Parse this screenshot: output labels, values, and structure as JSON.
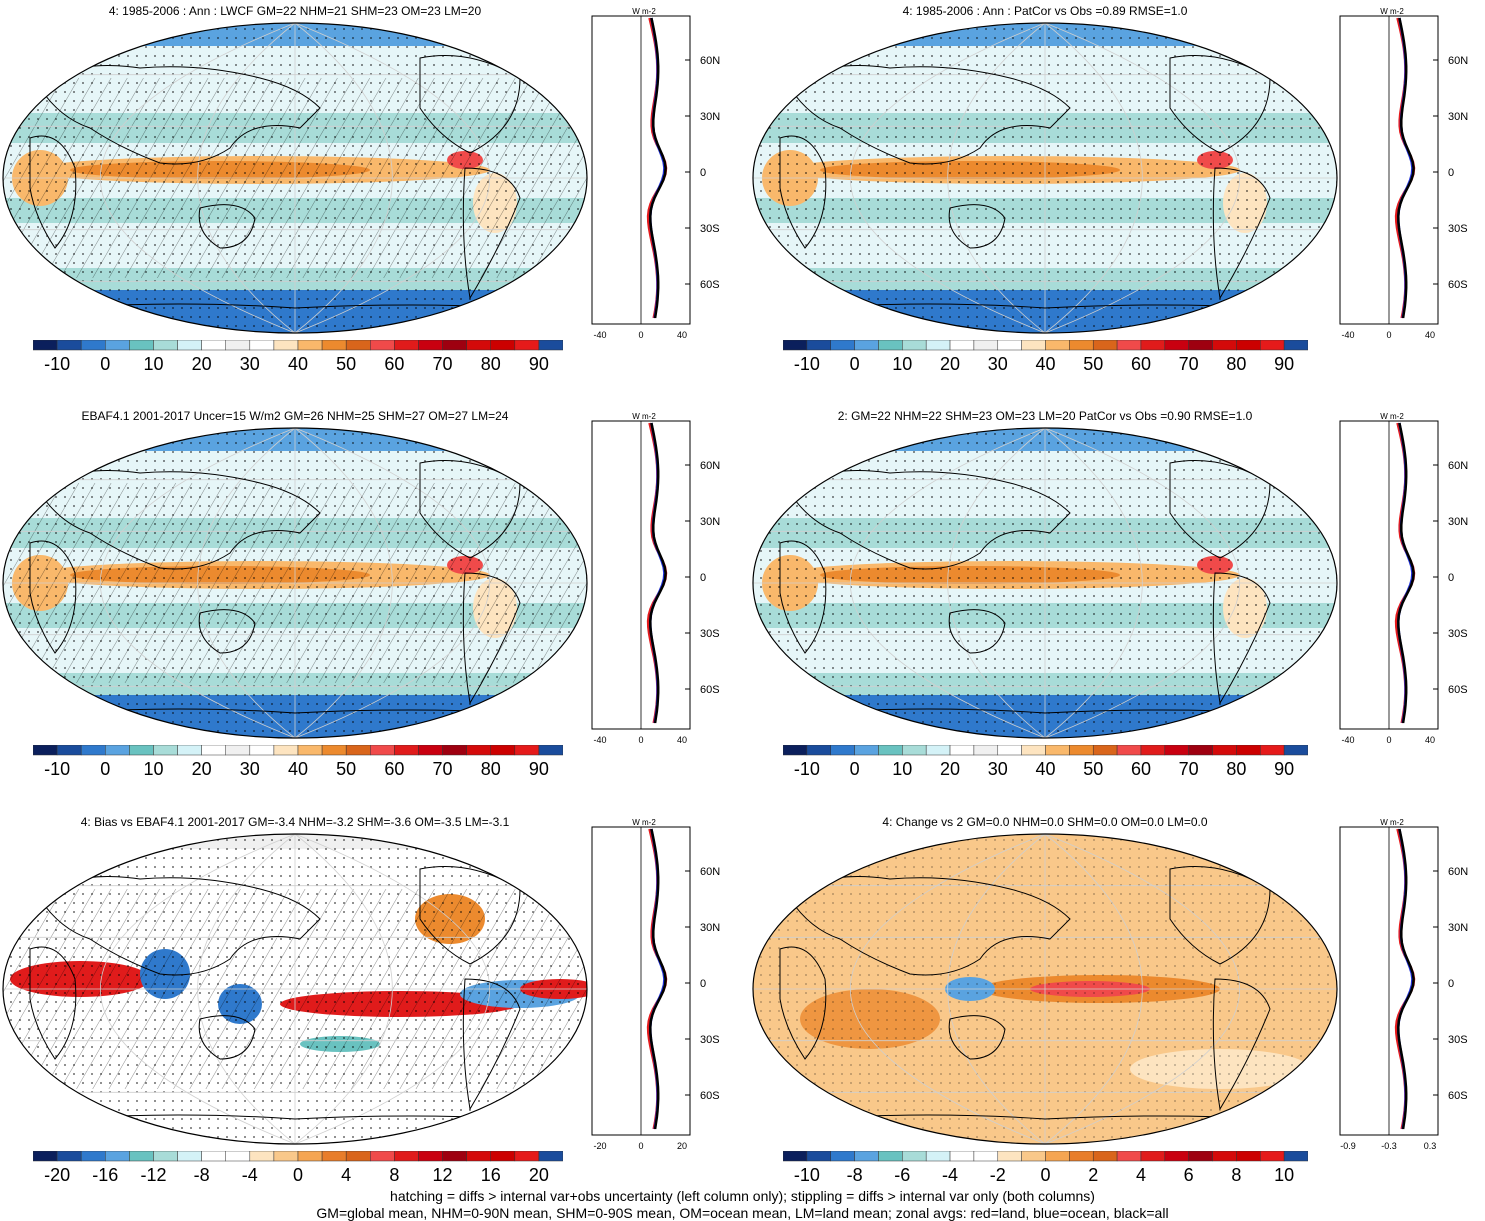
{
  "footer": {
    "line1": "hatching = diffs > internal var+obs uncertainty (left column only); stippling = diffs > internal var only (both columns)",
    "line2": "GM=global mean, NHM=0-90N mean, SHM=0-90S mean, OM=ocean mean, LM=land mean; zonal avgs: red=land, blue=ocean, black=all"
  },
  "zonal_unit": "W m-2",
  "lat_labels": [
    "60N",
    "30N",
    "0",
    "30S",
    "60S"
  ],
  "colors": {
    "land": "#e41a1c",
    "ocean": "#1f2fd6",
    "all": "#000000"
  },
  "panels": [
    {
      "title": "4: 1985-2006 : Ann : LWCF GM=22 NHM=21 SHM=23 OM=23 LM=20",
      "cbar_labels": [
        "-10",
        "0",
        "10",
        "20",
        "30",
        "40",
        "50",
        "60",
        "70",
        "80",
        "90"
      ],
      "zonal_ticks": [
        "-40",
        "0",
        "40"
      ],
      "palette": "abs"
    },
    {
      "title": "4: 1985-2006 : Ann : PatCor vs Obs =0.89 RMSE=1.0",
      "cbar_labels": [
        "-10",
        "0",
        "10",
        "20",
        "30",
        "40",
        "50",
        "60",
        "70",
        "80",
        "90"
      ],
      "zonal_ticks": [
        "-40",
        "0",
        "40"
      ],
      "palette": "abs"
    },
    {
      "title": "EBAF4.1 2001-2017 Uncer=15 W/m2 GM=26 NHM=25 SHM=27 OM=27 LM=24",
      "cbar_labels": [
        "-10",
        "0",
        "10",
        "20",
        "30",
        "40",
        "50",
        "60",
        "70",
        "80",
        "90"
      ],
      "zonal_ticks": [
        "-40",
        "0",
        "40"
      ],
      "palette": "abs"
    },
    {
      "title": "2: GM=22 NHM=22 SHM=23 OM=23 LM=20 PatCor vs Obs =0.90 RMSE=1.0",
      "cbar_labels": [
        "-10",
        "0",
        "10",
        "20",
        "30",
        "40",
        "50",
        "60",
        "70",
        "80",
        "90"
      ],
      "zonal_ticks": [
        "-40",
        "0",
        "40"
      ],
      "palette": "abs"
    },
    {
      "title": "4: Bias vs EBAF4.1 2001-2017 GM=-3.4 NHM=-3.2 SHM=-3.6 OM=-3.5 LM=-3.1",
      "cbar_labels": [
        "-20",
        "-16",
        "-12",
        "-8",
        "-4",
        "0",
        "4",
        "8",
        "12",
        "16",
        "20"
      ],
      "zonal_ticks": [
        "-20",
        "0",
        "20"
      ],
      "palette": "diff"
    },
    {
      "title": "4: Change vs 2 GM=0.0 NHM=0.0 SHM=0.0 OM=0.0 LM=0.0",
      "cbar_labels": [
        "-10",
        "-8",
        "-6",
        "-4",
        "-2",
        "0",
        "2",
        "4",
        "6",
        "8",
        "10"
      ],
      "zonal_ticks": [
        "-0.9",
        "-0.3",
        "0.3"
      ],
      "palette": "diff"
    }
  ]
}
